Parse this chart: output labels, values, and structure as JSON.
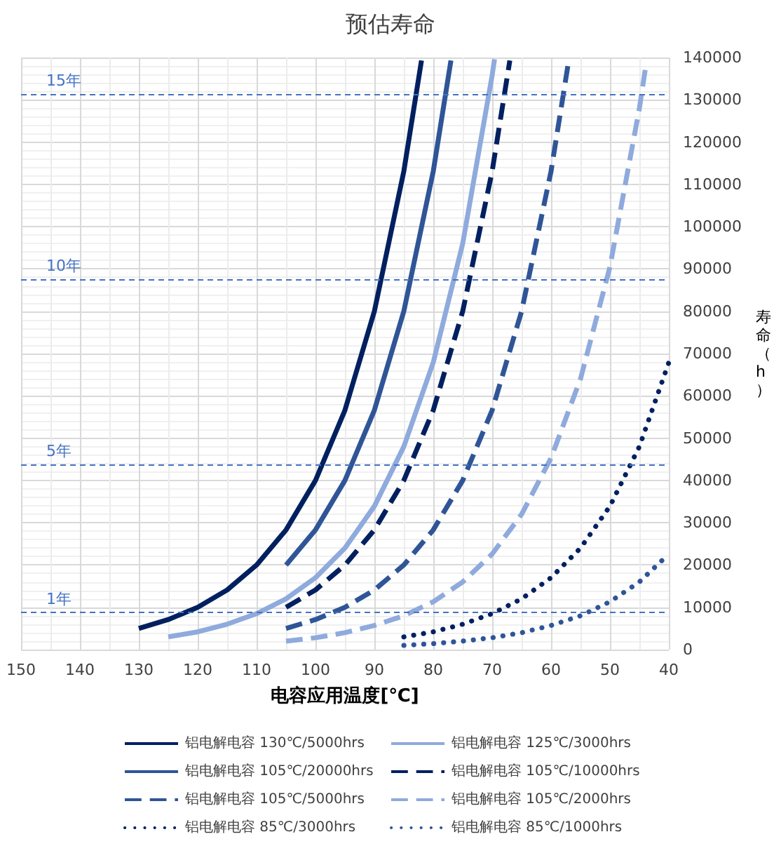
{
  "chart_data": {
    "type": "line",
    "title": "预估寿命",
    "xlabel": "电容应用温度[℃]",
    "ylabel": "寿命（h）",
    "xlim": [
      150,
      40
    ],
    "xticks": [
      150,
      140,
      130,
      120,
      110,
      100,
      90,
      80,
      70,
      60,
      50,
      40
    ],
    "ylim": [
      0,
      140000
    ],
    "yticks": [
      0,
      10000,
      20000,
      30000,
      40000,
      50000,
      60000,
      70000,
      80000,
      90000,
      100000,
      110000,
      120000,
      130000,
      140000
    ],
    "grid": true,
    "legend": "bottom",
    "ref_lines": [
      {
        "axis": "y",
        "value": 8760,
        "label": "1年",
        "color": "#4472c4",
        "line_style": "dashed"
      },
      {
        "axis": "y",
        "value": 43800,
        "label": "5年",
        "color": "#4472c4",
        "line_style": "dashed"
      },
      {
        "axis": "y",
        "value": 87600,
        "label": "10年",
        "color": "#4472c4",
        "line_style": "dashed"
      },
      {
        "axis": "y",
        "value": 131400,
        "label": "15年",
        "color": "#4472c4",
        "line_style": "dashed"
      }
    ],
    "series": [
      {
        "name": "铝电解电容 130℃/5000hrs",
        "color": "#002060",
        "line_style": "solid",
        "x": [
          130,
          125,
          120,
          115,
          110,
          105,
          100,
          95,
          90,
          85,
          82
        ],
        "values": [
          5000,
          7100,
          10000,
          14100,
          20000,
          28300,
          40000,
          56600,
          80000,
          113100,
          139300
        ]
      },
      {
        "name": "铝电解电容 125℃/3000hrs",
        "color": "#8faadc",
        "line_style": "solid",
        "x": [
          125,
          120,
          115,
          110,
          105,
          100,
          95,
          90,
          85,
          80,
          75,
          70,
          69.6
        ],
        "values": [
          3000,
          4200,
          6000,
          8500,
          12000,
          17000,
          24000,
          33900,
          48000,
          67900,
          96000,
          135800,
          139600
        ]
      },
      {
        "name": "铝电解电容 105℃/20000hrs",
        "color": "#2f5597",
        "line_style": "solid",
        "x": [
          105,
          100,
          95,
          90,
          85,
          80,
          77
        ],
        "values": [
          20000,
          28300,
          40000,
          56600,
          80000,
          113100,
          139300
        ]
      },
      {
        "name": "铝电解电容 105℃/10000hrs",
        "color": "#002060",
        "line_style": "dashed",
        "x": [
          105,
          100,
          95,
          90,
          85,
          80,
          75,
          70,
          67
        ],
        "values": [
          10000,
          14100,
          20000,
          28300,
          40000,
          56600,
          80000,
          113100,
          139300
        ]
      },
      {
        "name": "铝电解电容 105℃/5000hrs",
        "color": "#2f5597",
        "line_style": "dashed",
        "x": [
          105,
          100,
          95,
          90,
          85,
          80,
          75,
          70,
          65,
          60,
          57
        ],
        "values": [
          5000,
          7100,
          10000,
          14100,
          20000,
          28300,
          40000,
          56600,
          80000,
          113100,
          139300
        ]
      },
      {
        "name": "铝电解电容 105℃/2000hrs",
        "color": "#8faadc",
        "line_style": "dashed",
        "x": [
          105,
          100,
          95,
          90,
          85,
          80,
          75,
          70,
          65,
          60,
          55,
          50,
          45,
          44
        ],
        "values": [
          2000,
          2800,
          4000,
          5700,
          8000,
          11300,
          16000,
          22600,
          32000,
          45300,
          64000,
          90500,
          128000,
          137200
        ]
      },
      {
        "name": "铝电解电容 85℃/3000hrs",
        "color": "#002060",
        "line_style": "dotted",
        "x": [
          85,
          80,
          75,
          70,
          65,
          60,
          55,
          50,
          45,
          40
        ],
        "values": [
          3000,
          4200,
          6000,
          8500,
          12000,
          17000,
          24000,
          33900,
          48000,
          67900
        ]
      },
      {
        "name": "铝电解电容 85℃/1000hrs",
        "color": "#2f5597",
        "line_style": "dotted",
        "x": [
          85,
          80,
          75,
          70,
          65,
          60,
          55,
          50,
          45,
          40
        ],
        "values": [
          1000,
          1400,
          2000,
          2800,
          4000,
          5700,
          8000,
          11300,
          16000,
          22600
        ]
      }
    ]
  }
}
